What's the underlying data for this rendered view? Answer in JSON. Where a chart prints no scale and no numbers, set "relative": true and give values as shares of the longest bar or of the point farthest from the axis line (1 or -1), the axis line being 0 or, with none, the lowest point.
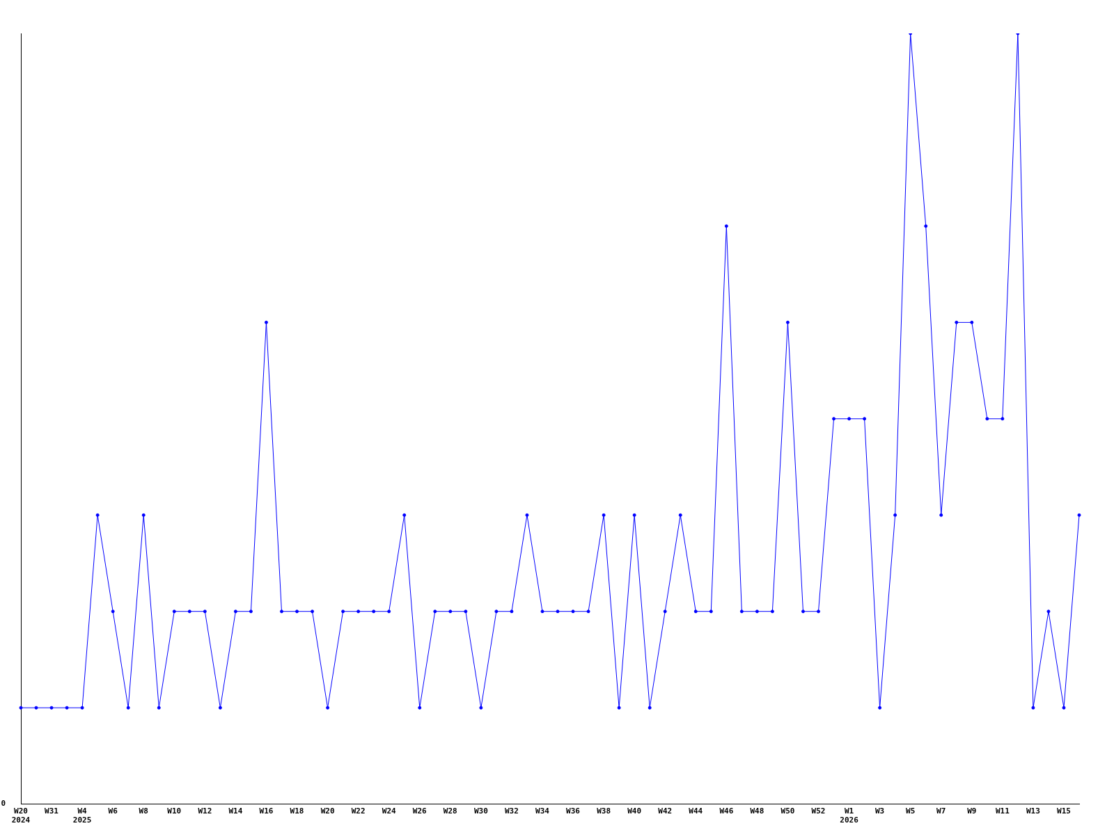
{
  "chart_data": {
    "type": "line",
    "relative": true,
    "color": "#0000ff",
    "marker": "circle",
    "grid": false,
    "legend": false,
    "annotations": [
      "0"
    ],
    "categories": [
      "W20\n2024",
      null,
      "W31",
      null,
      "W4\n2025",
      null,
      "W6",
      null,
      "W8",
      null,
      "W10",
      null,
      "W12",
      null,
      "W14",
      null,
      "W16",
      null,
      "W18",
      null,
      "W20",
      null,
      "W22",
      null,
      "W24",
      null,
      "W26",
      null,
      "W28",
      null,
      "W30",
      null,
      "W32",
      null,
      "W34",
      null,
      "W36",
      null,
      "W38",
      null,
      "W40",
      null,
      "W42",
      null,
      "W44",
      null,
      "W46",
      null,
      "W48",
      null,
      "W50",
      null,
      "W52",
      null,
      "W1\n2026",
      null,
      "W3",
      null,
      "W5",
      null,
      "W7",
      null,
      "W9",
      null,
      "W11",
      null,
      "W13",
      null,
      "W15",
      null
    ],
    "values": [
      0.125,
      0.125,
      0.125,
      0.125,
      0.125,
      0.375,
      0.25,
      0.125,
      0.375,
      0.125,
      0.25,
      0.25,
      0.25,
      0.125,
      0.25,
      0.25,
      0.625,
      0.25,
      0.25,
      0.25,
      0.125,
      0.25,
      0.25,
      0.25,
      0.25,
      0.375,
      0.125,
      0.25,
      0.25,
      0.25,
      0.125,
      0.25,
      0.25,
      0.375,
      0.25,
      0.25,
      0.25,
      0.25,
      0.375,
      0.125,
      0.375,
      0.125,
      0.25,
      0.375,
      0.25,
      0.25,
      0.75,
      0.25,
      0.25,
      0.25,
      0.625,
      0.25,
      0.25,
      0.5,
      0.5,
      0.5,
      0.125,
      0.375,
      1,
      0.75,
      0.375,
      0.625,
      0.625,
      0.5,
      0.5,
      1,
      0.125,
      0.25,
      0.125,
      0.375
    ]
  }
}
